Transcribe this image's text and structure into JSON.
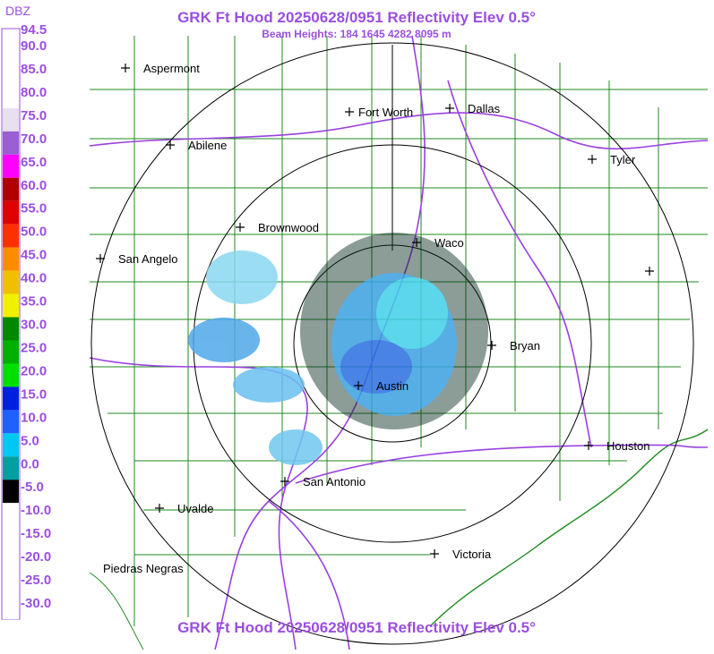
{
  "header": {
    "title": "GRK Ft Hood 20250628/0951 Reflectivity Elev 0.5°",
    "subtitle": "Beam Heights: 184 1645 4282 8095 m"
  },
  "scale": {
    "unit": "DBZ",
    "levels": [
      {
        "label": "94.5",
        "color": "#ffffff"
      },
      {
        "label": "90.0",
        "color": "#ffffff"
      },
      {
        "label": "85.0",
        "color": "#ffffff"
      },
      {
        "label": "80.0",
        "color": "#ffffff"
      },
      {
        "label": "75.0",
        "color": "#e8e0f0"
      },
      {
        "label": "70.0",
        "color": "#9a5fd0"
      },
      {
        "label": "65.0",
        "color": "#ff00ff"
      },
      {
        "label": "60.0",
        "color": "#b00000"
      },
      {
        "label": "55.0",
        "color": "#e00000"
      },
      {
        "label": "50.0",
        "color": "#ff3000"
      },
      {
        "label": "45.0",
        "color": "#ff8c00"
      },
      {
        "label": "40.0",
        "color": "#f0c000"
      },
      {
        "label": "35.0",
        "color": "#f0f000"
      },
      {
        "label": "30.0",
        "color": "#008800"
      },
      {
        "label": "25.0",
        "color": "#00b000"
      },
      {
        "label": "20.0",
        "color": "#00e000"
      },
      {
        "label": "15.0",
        "color": "#0020e0"
      },
      {
        "label": "10.0",
        "color": "#2060ff"
      },
      {
        "label": "5.0",
        "color": "#00c8f0"
      },
      {
        "label": "0.0",
        "color": "#00a0a0"
      },
      {
        "label": "-5.0",
        "color": "#000000"
      },
      {
        "label": "-10.0",
        "color": "#ffffff"
      },
      {
        "label": "-15.0",
        "color": "#ffffff"
      },
      {
        "label": "-20.0",
        "color": "#ffffff"
      },
      {
        "label": "-25.0",
        "color": "#ffffff"
      },
      {
        "label": "-30.0",
        "color": "#ffffff"
      }
    ]
  },
  "places": [
    {
      "name": "Aspermont"
    },
    {
      "name": "Fort Worth"
    },
    {
      "name": "Dallas"
    },
    {
      "name": "Abilene"
    },
    {
      "name": "Tyler"
    },
    {
      "name": "Brownwood"
    },
    {
      "name": "Waco"
    },
    {
      "name": "San Angelo"
    },
    {
      "name": "Bryan"
    },
    {
      "name": "Austin"
    },
    {
      "name": "Houston"
    },
    {
      "name": "San Antonio"
    },
    {
      "name": "Uvalde"
    },
    {
      "name": "Victoria"
    },
    {
      "name": "Piedras Negras"
    }
  ],
  "footer": {
    "title": "GRK Ft Hood 20250628/0951 Reflectivity Elev 0.5°"
  }
}
